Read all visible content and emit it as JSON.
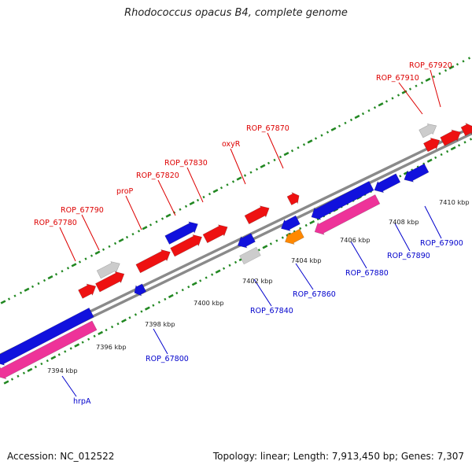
{
  "title": "Rhodococcus opacus B4, complete genome",
  "footer": {
    "accession": "Accession: NC_012522",
    "summary": "Topology: linear; Length: 7,913,450 bp; Genes: 7,307"
  },
  "colors": {
    "plus_label": "#dd0000",
    "minus_label": "#0000cc",
    "backbone": "#8a8a8a",
    "tick": "#228822",
    "cds_red": "#ee1111",
    "cds_blue": "#1111dd",
    "cds_pink": "#ee3399",
    "cds_gray": "#cccccc",
    "cds_orange": "#ff8800"
  },
  "chart_data": {
    "type": "linear-genome-map",
    "unit": "kbp",
    "scale_labels": [
      "7394 kbp",
      "7396 kbp",
      "7398 kbp",
      "7400 kbp",
      "7402 kbp",
      "7404 kbp",
      "7406 kbp",
      "7408 kbp",
      "7410 kbp"
    ],
    "plus_strand_labels": [
      "ROP_67780",
      "ROP_67790",
      "proP",
      "ROP_67820",
      "ROP_67830",
      "oxyR",
      "ROP_67870",
      "ROP_67910",
      "ROP_67920"
    ],
    "minus_strand_labels": [
      "hrpA",
      "ROP_67800",
      "ROP_67840",
      "ROP_67860",
      "ROP_67880",
      "ROP_67890",
      "ROP_67900"
    ]
  }
}
